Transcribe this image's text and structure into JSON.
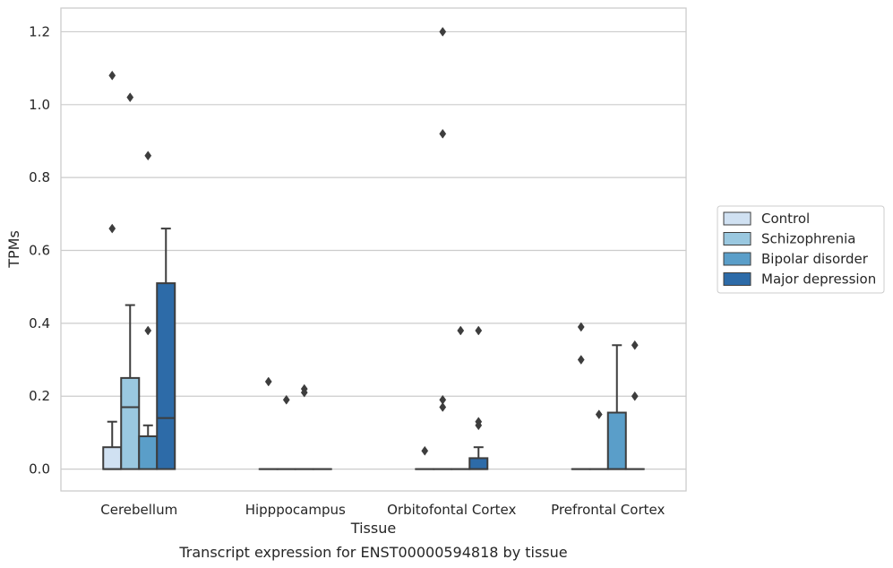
{
  "caption": "Transcript expression for ENST00000594818 by tissue",
  "chart_data": {
    "type": "box",
    "xlabel": "Tissue",
    "ylabel": "TPMs",
    "ylim": [
      -0.06,
      1.265
    ],
    "yticks": [
      0.0,
      0.2,
      0.4,
      0.6,
      0.8,
      1.0,
      1.2
    ],
    "ytick_labels": [
      "0.0",
      "0.2",
      "0.4",
      "0.6",
      "0.8",
      "1.0",
      "1.2"
    ],
    "grid": "horizontal",
    "legend_position": "right",
    "categories": [
      "Cerebellum",
      "Hipppocampus",
      "Orbitofontal Cortex",
      "Prefrontal Cortex"
    ],
    "series": [
      {
        "name": "Control",
        "color": "#d0e1f2",
        "boxes": [
          {
            "q1": 0.0,
            "median": 0.0,
            "q3": 0.06,
            "whisker_low": 0.0,
            "whisker_high": 0.13,
            "outliers": [
              0.66,
              1.08
            ]
          },
          {
            "q1": 0.0,
            "median": 0.0,
            "q3": 0.0,
            "whisker_low": 0.0,
            "whisker_high": 0.0,
            "outliers": [
              0.24
            ]
          },
          {
            "q1": 0.0,
            "median": 0.0,
            "q3": 0.0,
            "whisker_low": 0.0,
            "whisker_high": 0.0,
            "outliers": [
              0.05
            ]
          },
          {
            "q1": 0.0,
            "median": 0.0,
            "q3": 0.0,
            "whisker_low": 0.0,
            "whisker_high": 0.0,
            "outliers": [
              0.3,
              0.39
            ]
          }
        ]
      },
      {
        "name": "Schizophrenia",
        "color": "#9ac8e0",
        "boxes": [
          {
            "q1": 0.0,
            "median": 0.17,
            "q3": 0.25,
            "whisker_low": 0.0,
            "whisker_high": 0.45,
            "outliers": [
              1.02
            ]
          },
          {
            "q1": 0.0,
            "median": 0.0,
            "q3": 0.0,
            "whisker_low": 0.0,
            "whisker_high": 0.0,
            "outliers": [
              0.19
            ]
          },
          {
            "q1": 0.0,
            "median": 0.0,
            "q3": 0.0,
            "whisker_low": 0.0,
            "whisker_high": 0.0,
            "outliers": [
              0.17,
              0.19,
              0.92,
              1.2
            ]
          },
          {
            "q1": 0.0,
            "median": 0.0,
            "q3": 0.0,
            "whisker_low": 0.0,
            "whisker_high": 0.0,
            "outliers": [
              0.15
            ]
          }
        ]
      },
      {
        "name": "Bipolar disorder",
        "color": "#5a9ec9",
        "boxes": [
          {
            "q1": 0.0,
            "median": 0.09,
            "q3": 0.09,
            "whisker_low": 0.0,
            "whisker_high": 0.12,
            "outliers": [
              0.38,
              0.86
            ]
          },
          {
            "q1": 0.0,
            "median": 0.0,
            "q3": 0.0,
            "whisker_low": 0.0,
            "whisker_high": 0.0,
            "outliers": [
              0.21,
              0.22
            ]
          },
          {
            "q1": 0.0,
            "median": 0.0,
            "q3": 0.0,
            "whisker_low": 0.0,
            "whisker_high": 0.0,
            "outliers": [
              0.38
            ]
          },
          {
            "q1": 0.0,
            "median": 0.0,
            "q3": 0.155,
            "whisker_low": 0.0,
            "whisker_high": 0.34,
            "outliers": []
          }
        ]
      },
      {
        "name": "Major depression",
        "color": "#2d6ba8",
        "boxes": [
          {
            "q1": 0.0,
            "median": 0.14,
            "q3": 0.51,
            "whisker_low": 0.0,
            "whisker_high": 0.66,
            "outliers": []
          },
          {
            "q1": 0.0,
            "median": 0.0,
            "q3": 0.0,
            "whisker_low": 0.0,
            "whisker_high": 0.0,
            "outliers": []
          },
          {
            "q1": 0.0,
            "median": 0.0,
            "q3": 0.03,
            "whisker_low": 0.0,
            "whisker_high": 0.06,
            "outliers": [
              0.12,
              0.13,
              0.38
            ]
          },
          {
            "q1": 0.0,
            "median": 0.0,
            "q3": 0.0,
            "whisker_low": 0.0,
            "whisker_high": 0.0,
            "outliers": [
              0.2,
              0.34
            ]
          }
        ]
      }
    ]
  }
}
